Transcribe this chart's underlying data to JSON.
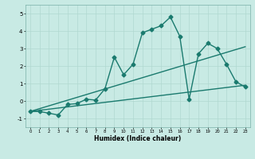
{
  "title": "",
  "xlabel": "Humidex (Indice chaleur)",
  "xlim": [
    -0.5,
    23.5
  ],
  "ylim": [
    -1.5,
    5.5
  ],
  "yticks": [
    -1,
    0,
    1,
    2,
    3,
    4,
    5
  ],
  "xticks": [
    0,
    1,
    2,
    3,
    4,
    5,
    6,
    7,
    8,
    9,
    10,
    11,
    12,
    13,
    14,
    15,
    16,
    17,
    18,
    19,
    20,
    21,
    22,
    23
  ],
  "bg_color": "#c8eae4",
  "line_color": "#1a7a6e",
  "grid_color": "#b0d8d0",
  "line1_x": [
    0,
    1,
    2,
    3,
    4,
    5,
    6,
    7,
    8,
    9,
    10,
    11,
    12,
    13,
    14,
    15,
    16,
    17,
    18,
    19,
    20,
    21,
    22,
    23
  ],
  "line1_y": [
    -0.6,
    -0.6,
    -0.7,
    -0.8,
    -0.2,
    -0.15,
    0.1,
    0.05,
    0.7,
    2.5,
    1.5,
    2.1,
    3.9,
    4.1,
    4.3,
    4.8,
    3.7,
    0.1,
    2.7,
    3.3,
    3.0,
    2.1,
    1.1,
    0.8
  ],
  "line2_x": [
    0,
    23
  ],
  "line2_y": [
    -0.6,
    0.9
  ],
  "line3_x": [
    0,
    23
  ],
  "line3_y": [
    -0.6,
    3.1
  ],
  "marker_size": 2.5,
  "line_width": 1.0
}
